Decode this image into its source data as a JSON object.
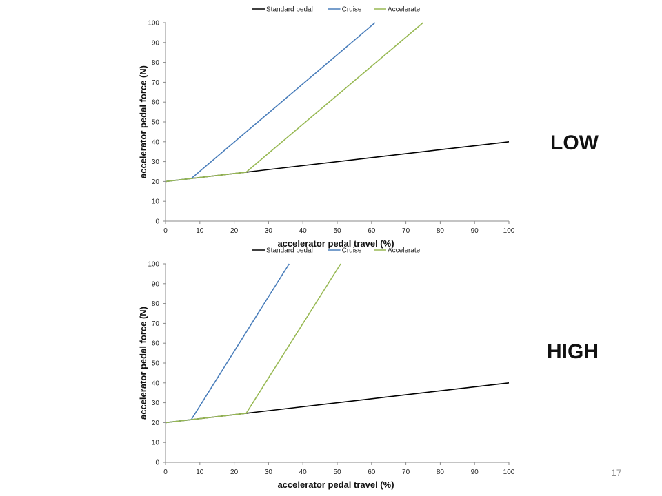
{
  "slide": {
    "label_low": "LOW",
    "label_high": "HIGH",
    "page_number": "17"
  },
  "chart_data": [
    {
      "type": "line",
      "xlabel": "accelerator pedal travel (%)",
      "ylabel": "accelerator pedal force (N)",
      "xlim": [
        0,
        100
      ],
      "ylim": [
        0,
        100
      ],
      "xticks": [
        0,
        10,
        20,
        30,
        40,
        50,
        60,
        70,
        80,
        90,
        100
      ],
      "yticks": [
        0,
        10,
        20,
        30,
        40,
        50,
        60,
        70,
        80,
        90,
        100
      ],
      "grid": false,
      "legend_position": "top",
      "series": [
        {
          "name": "Standard pedal",
          "color": "#000000",
          "points": [
            [
              0,
              20
            ],
            [
              23.5,
              24.7
            ],
            [
              100,
              40
            ]
          ]
        },
        {
          "name": "Cruise",
          "color": "#4a7ebb",
          "points": [
            [
              0,
              20
            ],
            [
              7.5,
              21.5
            ],
            [
              61,
              100
            ]
          ]
        },
        {
          "name": "Accelerate",
          "color": "#98b954",
          "points": [
            [
              0,
              20
            ],
            [
              23.5,
              24.7
            ],
            [
              75,
              100
            ]
          ]
        }
      ]
    },
    {
      "type": "line",
      "xlabel": "accelerator pedal travel (%)",
      "ylabel": "accelerator pedal force (N)",
      "xlim": [
        0,
        100
      ],
      "ylim": [
        0,
        100
      ],
      "xticks": [
        0,
        10,
        20,
        30,
        40,
        50,
        60,
        70,
        80,
        90,
        100
      ],
      "yticks": [
        0,
        10,
        20,
        30,
        40,
        50,
        60,
        70,
        80,
        90,
        100
      ],
      "grid": false,
      "legend_position": "top",
      "series": [
        {
          "name": "Standard pedal",
          "color": "#000000",
          "points": [
            [
              0,
              20
            ],
            [
              23.5,
              24.7
            ],
            [
              100,
              40
            ]
          ]
        },
        {
          "name": "Cruise",
          "color": "#4a7ebb",
          "points": [
            [
              0,
              20
            ],
            [
              7.5,
              21.5
            ],
            [
              36,
              100
            ]
          ]
        },
        {
          "name": "Accelerate",
          "color": "#98b954",
          "points": [
            [
              0,
              20
            ],
            [
              23.5,
              24.7
            ],
            [
              51,
              100
            ]
          ]
        }
      ]
    }
  ]
}
